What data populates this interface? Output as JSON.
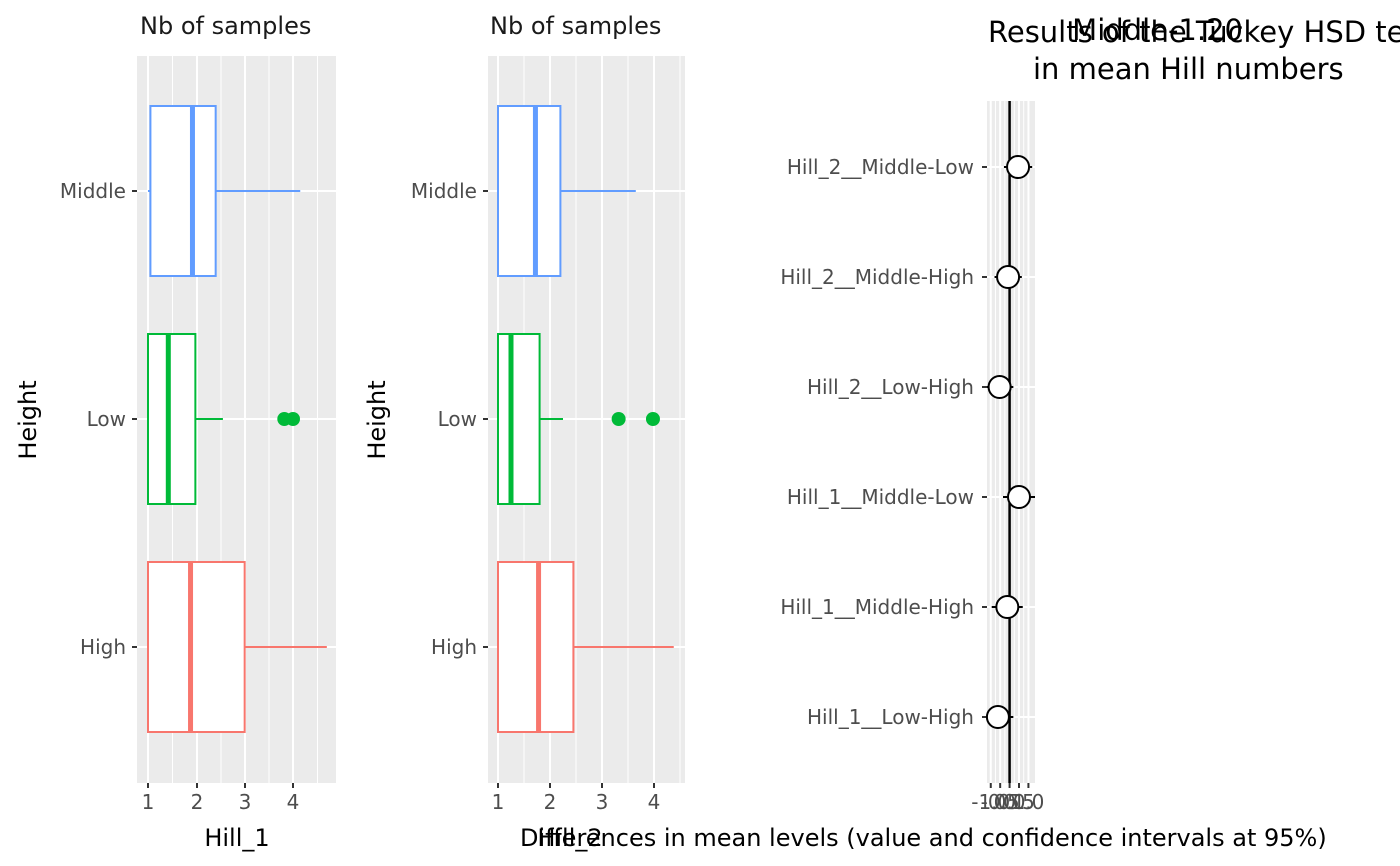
{
  "chart_data": [
    {
      "type": "boxplot",
      "title": "Nb of samples",
      "xlabel": "Hill_1",
      "ylabel": "Height",
      "xlim": [
        0.82,
        4.88
      ],
      "x_ticks": [
        1,
        2,
        3,
        4
      ],
      "x_tick_labels": [
        "1",
        "2",
        "3",
        "4"
      ],
      "categories": [
        "Middle",
        "Low",
        "High"
      ],
      "boxes": [
        {
          "group": "Middle",
          "color": "#619CFF",
          "whisker_low": 1.0,
          "q1": 1.05,
          "median": 1.92,
          "q3": 2.4,
          "whisker_high": 4.15,
          "outliers": []
        },
        {
          "group": "Low",
          "color": "#00BA38",
          "whisker_low": 1.0,
          "q1": 1.0,
          "median": 1.42,
          "q3": 1.98,
          "whisker_high": 2.55,
          "outliers": [
            3.82,
            4.0
          ]
        },
        {
          "group": "High",
          "color": "#F8766D",
          "whisker_low": 1.0,
          "q1": 1.0,
          "median": 1.88,
          "q3": 3.0,
          "whisker_high": 4.7,
          "outliers": []
        }
      ]
    },
    {
      "type": "boxplot",
      "title": "Nb of samples",
      "xlabel": "Hill_2",
      "ylabel": "Height",
      "xlim": [
        0.84,
        4.56
      ],
      "x_ticks": [
        1,
        2,
        3,
        4
      ],
      "x_tick_labels": [
        "1",
        "2",
        "3",
        "4"
      ],
      "categories": [
        "Middle",
        "Low",
        "High"
      ],
      "boxes": [
        {
          "group": "Middle",
          "color": "#619CFF",
          "whisker_low": 1.0,
          "q1": 1.0,
          "median": 1.72,
          "q3": 2.2,
          "whisker_high": 3.65,
          "outliers": []
        },
        {
          "group": "Low",
          "color": "#00BA38",
          "whisker_low": 1.0,
          "q1": 1.0,
          "median": 1.25,
          "q3": 1.8,
          "whisker_high": 2.25,
          "outliers": [
            3.32,
            3.98
          ]
        },
        {
          "group": "High",
          "color": "#F8766D",
          "whisker_low": 1.0,
          "q1": 1.0,
          "median": 1.78,
          "q3": 2.45,
          "whisker_high": 4.38,
          "outliers": []
        }
      ]
    },
    {
      "type": "scatter",
      "title": "Results of the Tuckey HSD test",
      "title_line2": "in mean Hill numbers",
      "subtitle": "Middle-1.20",
      "xlabel": "Differences in mean levels (value and confidence intervals at 95%)",
      "ylabel": "",
      "xlim": [
        -1.2,
        1.35
      ],
      "x_ticks": [
        -1.0,
        -0.5,
        0.0,
        0.5,
        1.0
      ],
      "x_tick_labels": [
        "-1.0",
        "-0.5",
        "0.0",
        "0.5",
        "1.0"
      ],
      "zero_line": 0,
      "categories": [
        "Hill_2__Middle-Low",
        "Hill_2__Middle-High",
        "Hill_2__Low-High",
        "Hill_1__Middle-Low",
        "Hill_1__Middle-High",
        "Hill_1__Low-High"
      ],
      "points": [
        {
          "label": "Hill_2__Middle-Low",
          "diff": 0.45,
          "lwr": -0.3,
          "upr": 1.2
        },
        {
          "label": "Hill_2__Middle-High",
          "diff": -0.08,
          "lwr": -0.8,
          "upr": 0.65
        },
        {
          "label": "Hill_2__Low-High",
          "diff": -0.53,
          "lwr": -1.25,
          "upr": 0.2
        },
        {
          "label": "Hill_1__Middle-Low",
          "diff": 0.5,
          "lwr": -0.35,
          "upr": 1.35
        },
        {
          "label": "Hill_1__Middle-High",
          "diff": -0.12,
          "lwr": -0.95,
          "upr": 0.7
        },
        {
          "label": "Hill_1__Low-High",
          "diff": -0.62,
          "lwr": -1.45,
          "upr": 0.2
        }
      ]
    }
  ]
}
